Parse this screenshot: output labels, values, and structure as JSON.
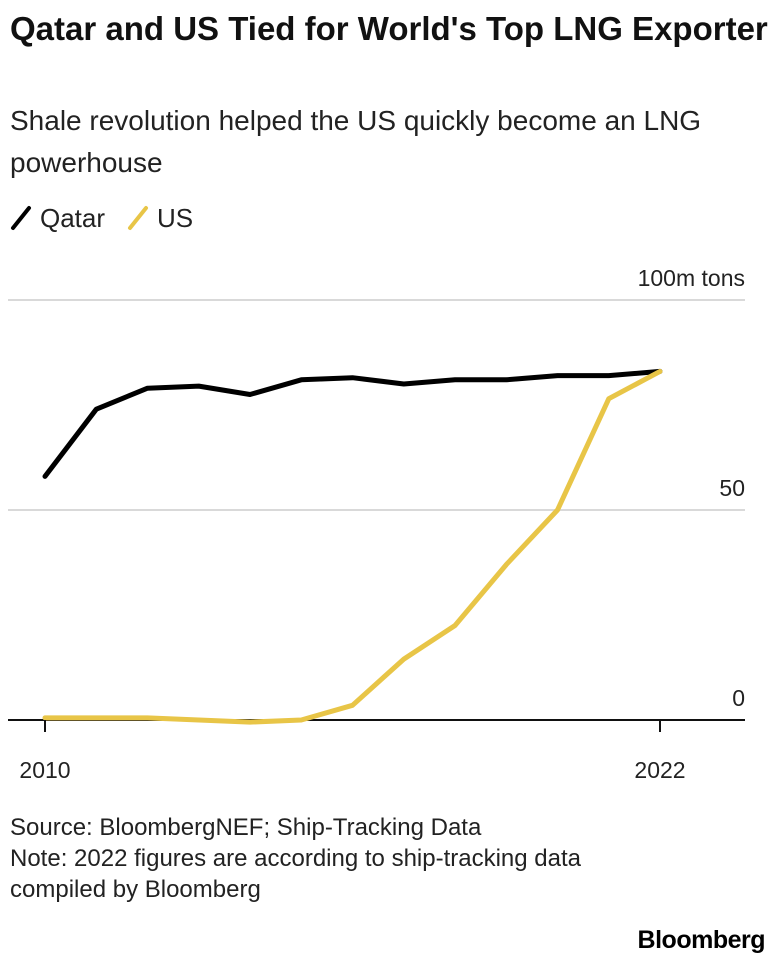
{
  "header": {
    "title": "Qatar and US Tied for World's Top LNG Exporter",
    "subtitle": "Shale revolution helped the US quickly become an LNG powerhouse"
  },
  "legend": {
    "items": [
      {
        "label": "Qatar",
        "color": "#000000"
      },
      {
        "label": "US",
        "color": "#E8C547"
      }
    ]
  },
  "chart_data": {
    "type": "line",
    "title": "Qatar and US Tied for World's Top LNG Exporter",
    "subtitle": "Shale revolution helped the US quickly become an LNG powerhouse",
    "xlabel": "",
    "ylabel": "",
    "y_unit_label": "100m tons",
    "x": [
      2010,
      2011,
      2012,
      2013,
      2014,
      2015,
      2016,
      2017,
      2018,
      2019,
      2020,
      2021,
      2022
    ],
    "x_tick_labels": [
      "2010",
      "2022"
    ],
    "y_tick_labels": [
      "0",
      "50",
      "100m tons"
    ],
    "y_ticks": [
      0,
      50,
      100
    ],
    "ylim": [
      0,
      100
    ],
    "grid": "horizontal",
    "legend_position": "top-left",
    "series": [
      {
        "name": "Qatar",
        "color": "#000000",
        "values": [
          58,
          74,
          79,
          79.5,
          77.5,
          81,
          81.5,
          80,
          81,
          81,
          82,
          82,
          83
        ]
      },
      {
        "name": "US",
        "color": "#E8C547",
        "values": [
          0.5,
          0.5,
          0.5,
          0,
          -0.5,
          0,
          3.5,
          14.5,
          22.5,
          37,
          50,
          76.5,
          83
        ]
      }
    ]
  },
  "footer": {
    "source": "Source: BloombergNEF; Ship-Tracking Data",
    "note": "Note: 2022 figures are according to ship-tracking data compiled by Bloomberg"
  },
  "brand": {
    "logo_text": "Bloomberg"
  }
}
